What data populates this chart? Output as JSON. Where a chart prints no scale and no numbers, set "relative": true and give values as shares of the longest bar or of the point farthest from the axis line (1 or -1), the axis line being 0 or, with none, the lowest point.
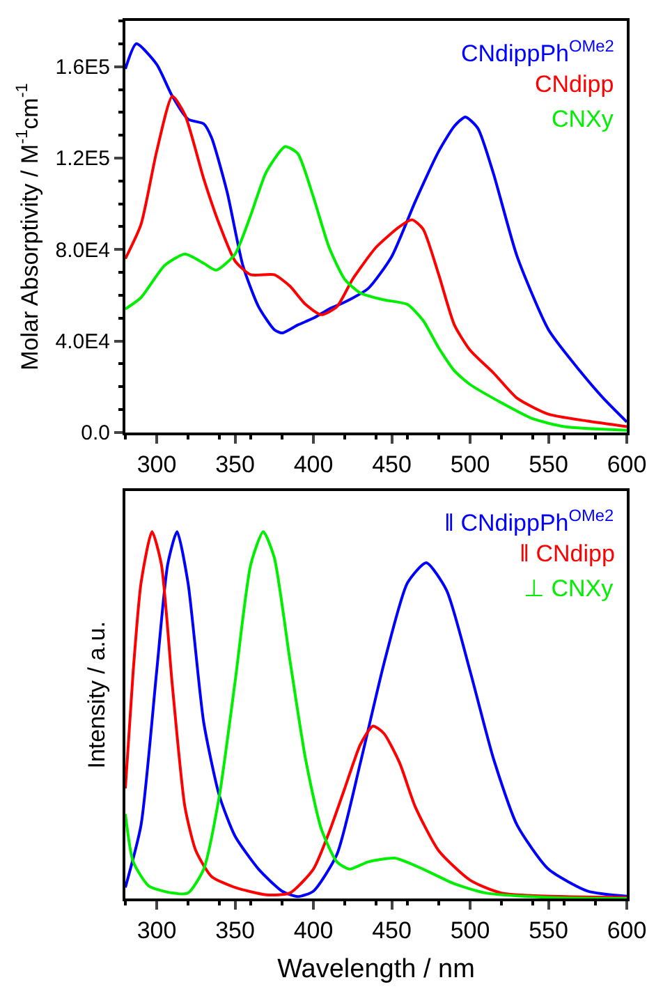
{
  "chart_data": [
    {
      "type": "line",
      "ylabel": "Molar Absorptivity / M$^{-1}$cm$^{-1}$",
      "xlim": [
        280,
        600
      ],
      "xticks": [
        300,
        350,
        400,
        450,
        500,
        550,
        600
      ],
      "ylim": [
        0,
        180000
      ],
      "yticks": [
        {
          "value": 0,
          "label": "0.0"
        },
        {
          "value": 40000,
          "label": "4.0E4"
        },
        {
          "value": 80000,
          "label": "8.0E4"
        },
        {
          "value": 120000,
          "label": "1.2E5"
        },
        {
          "value": 160000,
          "label": "1.6E5"
        }
      ],
      "legend": "top right",
      "series": [
        {
          "name": "CNdippPh$^{OMe2}$",
          "color": "#0000ff",
          "x": [
            280,
            287,
            300,
            310,
            320,
            330,
            335,
            345,
            355,
            365,
            375,
            380,
            390,
            400,
            410,
            420,
            435,
            450,
            465,
            480,
            490,
            497,
            505,
            515,
            530,
            550,
            570,
            585,
            600
          ],
          "values": [
            159000,
            170000,
            161000,
            147000,
            137000,
            135000,
            129000,
            105000,
            73000,
            55000,
            45000,
            43500,
            47000,
            50000,
            54000,
            57000,
            63000,
            77000,
            101000,
            123000,
            134000,
            138000,
            133000,
            113000,
            77000,
            45000,
            27000,
            15000,
            4600
          ]
        },
        {
          "name": "CNdipp",
          "color": "#ff0000",
          "x": [
            280,
            290,
            300,
            310,
            318,
            330,
            340,
            350,
            360,
            375,
            385,
            395,
            405,
            415,
            425,
            440,
            455,
            463,
            470,
            480,
            490,
            500,
            515,
            530,
            550,
            575,
            600
          ],
          "values": [
            76000,
            91000,
            123000,
            147000,
            139000,
            111000,
            91000,
            75000,
            69000,
            69000,
            64000,
            56000,
            51500,
            55000,
            67000,
            81000,
            90000,
            93000,
            89000,
            69000,
            47000,
            36000,
            26000,
            15000,
            8000,
            5000,
            2600
          ]
        },
        {
          "name": "CNXy",
          "color": "#00ee00",
          "x": [
            280,
            290,
            305,
            318,
            330,
            338,
            350,
            360,
            370,
            382,
            390,
            400,
            410,
            420,
            430,
            445,
            460,
            470,
            480,
            490,
            500,
            520,
            540,
            560,
            600
          ],
          "values": [
            54000,
            59000,
            73000,
            78000,
            74000,
            71000,
            78000,
            95000,
            114000,
            125000,
            122000,
            103000,
            81000,
            67000,
            61000,
            58000,
            56000,
            49000,
            37000,
            27000,
            21000,
            13000,
            6000,
            2600,
            1000
          ]
        }
      ]
    },
    {
      "type": "line",
      "relative": true,
      "xlabel": "Wavelength / nm",
      "ylabel": "Intensity / a.u.",
      "xlim": [
        280,
        600
      ],
      "xticks": [
        300,
        350,
        400,
        450,
        500,
        550,
        600
      ],
      "legend": "top right",
      "series": [
        {
          "name": "‖ CNdippPh$^{OMe2}$",
          "color": "#0000ff",
          "x": [
            280,
            290,
            300,
            307,
            313,
            320,
            330,
            340,
            350,
            365,
            380,
            390,
            400,
            415,
            430,
            445,
            460,
            472,
            485,
            500,
            515,
            530,
            550,
            575,
            600
          ],
          "values": [
            0.03,
            0.2,
            0.62,
            0.91,
            1.0,
            0.86,
            0.48,
            0.28,
            0.17,
            0.08,
            0.02,
            0.005,
            0.02,
            0.12,
            0.37,
            0.64,
            0.86,
            0.915,
            0.84,
            0.62,
            0.38,
            0.2,
            0.08,
            0.02,
            0.006
          ]
        },
        {
          "name": "‖ CNdipp",
          "color": "#ff0000",
          "x": [
            280,
            285,
            290,
            297,
            303,
            310,
            318,
            325,
            335,
            350,
            370,
            385,
            400,
            410,
            420,
            430,
            438,
            445,
            455,
            465,
            480,
            500,
            520,
            600
          ],
          "values": [
            0.3,
            0.62,
            0.86,
            1.0,
            0.91,
            0.58,
            0.25,
            0.13,
            0.06,
            0.03,
            0.01,
            0.015,
            0.08,
            0.18,
            0.3,
            0.42,
            0.47,
            0.45,
            0.37,
            0.25,
            0.13,
            0.05,
            0.015,
            0.003
          ]
        },
        {
          "name": "⊥ CNXy",
          "color": "#00ee00",
          "x": [
            280,
            285,
            295,
            310,
            320,
            330,
            340,
            350,
            360,
            368,
            375,
            385,
            395,
            405,
            415,
            423,
            435,
            452,
            470,
            490,
            510,
            550,
            600
          ],
          "values": [
            0.23,
            0.1,
            0.034,
            0.015,
            0.015,
            0.08,
            0.28,
            0.59,
            0.91,
            1.0,
            0.93,
            0.65,
            0.38,
            0.19,
            0.1,
            0.08,
            0.1,
            0.11,
            0.08,
            0.04,
            0.015,
            0.003,
            0
          ]
        }
      ]
    }
  ]
}
